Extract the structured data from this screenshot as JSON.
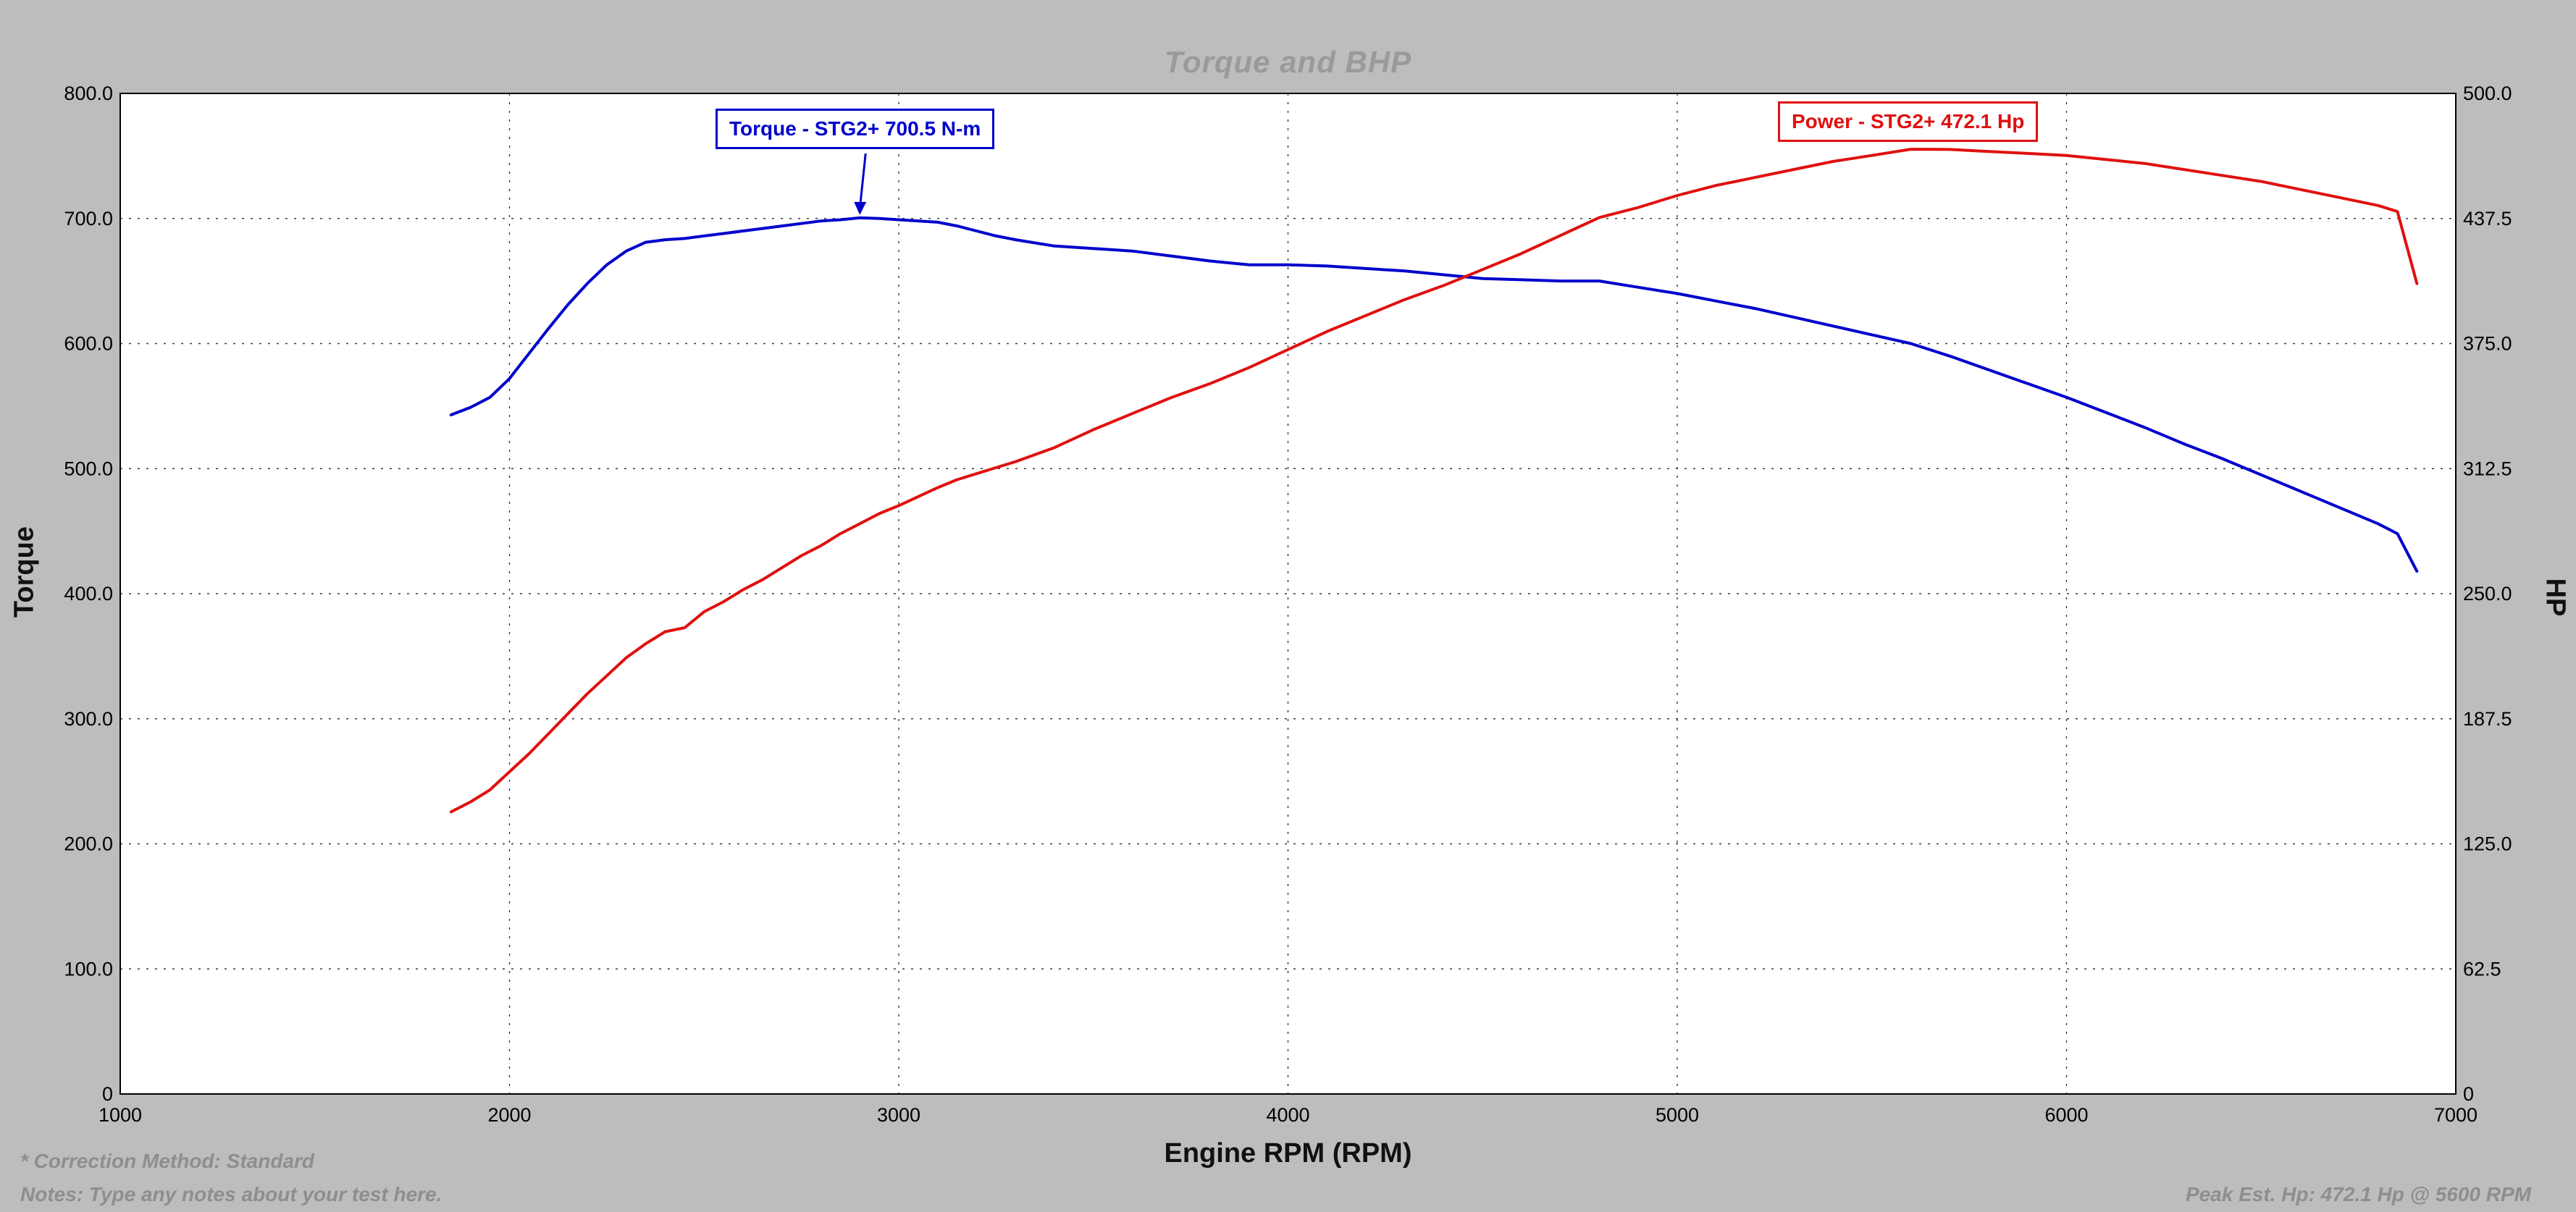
{
  "page": {
    "background": "#bdbdbd"
  },
  "footer": {
    "correction": "* Correction Method: Standard",
    "notes": "Notes: Type any notes about your test here.",
    "peak": "Peak Est. Hp: 472.1 Hp @ 5600 RPM"
  },
  "chart_data": {
    "type": "line",
    "title": "Torque and BHP",
    "xlabel": "Engine RPM (RPM)",
    "ylabel_left": "Torque",
    "ylabel_right": "HP",
    "grid": true,
    "legend_position": "inline-labels",
    "x_range": [
      1000,
      7000
    ],
    "x_ticks": [
      1000,
      2000,
      3000,
      4000,
      5000,
      6000,
      7000
    ],
    "x_tick_labels": [
      "1000",
      "2000",
      "3000",
      "4000",
      "5000",
      "6000",
      "7000"
    ],
    "y_left_range": [
      0,
      800
    ],
    "y_left_ticks": [
      0,
      100,
      200,
      300,
      400,
      500,
      600,
      700,
      800
    ],
    "y_left_tick_labels": [
      "0",
      "100.0",
      "200.0",
      "300.0",
      "400.0",
      "500.0",
      "600.0",
      "700.0",
      "800.0"
    ],
    "y_right_range": [
      0,
      500
    ],
    "y_right_ticks": [
      0,
      62.5,
      125,
      187.5,
      250,
      312.5,
      375,
      437.5,
      500
    ],
    "y_right_tick_labels": [
      "0",
      "62.5",
      "125.0",
      "187.5",
      "250.0",
      "312.5",
      "375.0",
      "437.5",
      "500.0"
    ],
    "series": [
      {
        "name": "Torque - STG2+ 700.5 N-m",
        "axis": "left",
        "color": "#0000cc",
        "units": "N-m",
        "peak": {
          "rpm": 2900,
          "value": 700.5
        },
        "pointer": {
          "rpm": 2900,
          "value": 700.5
        },
        "points": [
          [
            1850,
            543
          ],
          [
            1900,
            549
          ],
          [
            1950,
            557
          ],
          [
            2000,
            572
          ],
          [
            2050,
            592
          ],
          [
            2100,
            612
          ],
          [
            2150,
            631
          ],
          [
            2200,
            648
          ],
          [
            2250,
            663
          ],
          [
            2300,
            674
          ],
          [
            2350,
            681
          ],
          [
            2400,
            683
          ],
          [
            2450,
            684
          ],
          [
            2500,
            686
          ],
          [
            2550,
            688
          ],
          [
            2600,
            690
          ],
          [
            2650,
            692
          ],
          [
            2700,
            694
          ],
          [
            2750,
            696
          ],
          [
            2800,
            698
          ],
          [
            2850,
            699
          ],
          [
            2900,
            700.5
          ],
          [
            2950,
            700
          ],
          [
            3000,
            699
          ],
          [
            3100,
            697
          ],
          [
            3150,
            694
          ],
          [
            3200,
            690
          ],
          [
            3250,
            686
          ],
          [
            3300,
            683
          ],
          [
            3400,
            678
          ],
          [
            3500,
            676
          ],
          [
            3600,
            674
          ],
          [
            3700,
            670
          ],
          [
            3800,
            666
          ],
          [
            3900,
            663
          ],
          [
            4000,
            663
          ],
          [
            4100,
            662
          ],
          [
            4200,
            660
          ],
          [
            4300,
            658
          ],
          [
            4400,
            655
          ],
          [
            4500,
            652
          ],
          [
            4600,
            651
          ],
          [
            4700,
            650
          ],
          [
            4800,
            650
          ],
          [
            4900,
            645
          ],
          [
            5000,
            640
          ],
          [
            5100,
            634
          ],
          [
            5200,
            628
          ],
          [
            5300,
            621
          ],
          [
            5400,
            614
          ],
          [
            5500,
            607
          ],
          [
            5600,
            600
          ],
          [
            5700,
            590
          ],
          [
            5800,
            579
          ],
          [
            5900,
            568
          ],
          [
            6000,
            557
          ],
          [
            6100,
            545
          ],
          [
            6200,
            533
          ],
          [
            6300,
            520
          ],
          [
            6400,
            508
          ],
          [
            6500,
            495
          ],
          [
            6600,
            482
          ],
          [
            6700,
            469
          ],
          [
            6800,
            456
          ],
          [
            6850,
            448
          ],
          [
            6900,
            418
          ]
        ]
      },
      {
        "name": "Power - STG2+ 472.1 Hp",
        "axis": "right",
        "color": "#e01010",
        "units": "Hp",
        "peak": {
          "rpm": 5600,
          "value": 472.1
        },
        "points": [
          [
            1850,
            141
          ],
          [
            1900,
            146
          ],
          [
            1950,
            152
          ],
          [
            2000,
            161
          ],
          [
            2050,
            170
          ],
          [
            2100,
            180
          ],
          [
            2150,
            190
          ],
          [
            2200,
            200
          ],
          [
            2250,
            209
          ],
          [
            2300,
            218
          ],
          [
            2350,
            225
          ],
          [
            2400,
            231
          ],
          [
            2450,
            233
          ],
          [
            2500,
            241
          ],
          [
            2550,
            246
          ],
          [
            2600,
            252
          ],
          [
            2650,
            257
          ],
          [
            2700,
            263
          ],
          [
            2750,
            269
          ],
          [
            2800,
            274
          ],
          [
            2850,
            280
          ],
          [
            2900,
            285
          ],
          [
            2950,
            290
          ],
          [
            3000,
            294
          ],
          [
            3100,
            303
          ],
          [
            3150,
            307
          ],
          [
            3200,
            310
          ],
          [
            3250,
            313
          ],
          [
            3300,
            316
          ],
          [
            3400,
            323
          ],
          [
            3500,
            332
          ],
          [
            3600,
            340
          ],
          [
            3700,
            348
          ],
          [
            3800,
            355
          ],
          [
            3900,
            363
          ],
          [
            4000,
            372
          ],
          [
            4100,
            381
          ],
          [
            4200,
            389
          ],
          [
            4300,
            397
          ],
          [
            4400,
            404
          ],
          [
            4500,
            412
          ],
          [
            4600,
            420
          ],
          [
            4700,
            429
          ],
          [
            4800,
            438
          ],
          [
            4900,
            443
          ],
          [
            5000,
            449
          ],
          [
            5100,
            454
          ],
          [
            5200,
            458
          ],
          [
            5300,
            462
          ],
          [
            5400,
            466
          ],
          [
            5500,
            469
          ],
          [
            5600,
            472.1
          ],
          [
            5700,
            472
          ],
          [
            5800,
            471
          ],
          [
            5900,
            470
          ],
          [
            6000,
            469
          ],
          [
            6100,
            467
          ],
          [
            6200,
            465
          ],
          [
            6300,
            462
          ],
          [
            6400,
            459
          ],
          [
            6500,
            456
          ],
          [
            6600,
            452
          ],
          [
            6700,
            448
          ],
          [
            6800,
            444
          ],
          [
            6850,
            441
          ],
          [
            6900,
            405
          ]
        ]
      }
    ]
  }
}
